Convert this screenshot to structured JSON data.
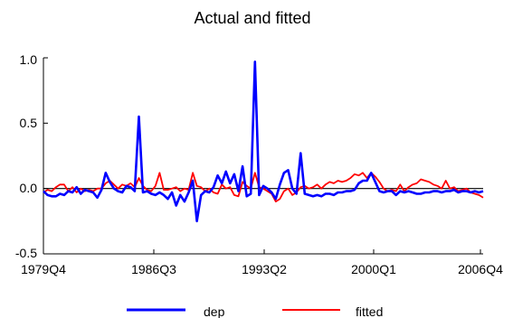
{
  "chart_data": {
    "type": "line",
    "title": "Actual and fitted",
    "xlabel": "",
    "ylabel": "",
    "x_ticks": [
      "1979Q4",
      "1986Q3",
      "1993Q2",
      "2000Q1",
      "2006Q4"
    ],
    "y_ticks": [
      "-0.5",
      "0.0",
      "0.5",
      "1.0"
    ],
    "ylim": [
      -0.5,
      1.0
    ],
    "grid": false,
    "zero_line": true,
    "legend_position": "bottom",
    "series": [
      {
        "name": "dep",
        "color": "#0000ff",
        "values": [
          -0.02,
          -0.05,
          -0.06,
          -0.06,
          -0.04,
          -0.05,
          -0.02,
          -0.03,
          0.01,
          -0.04,
          -0.01,
          -0.02,
          -0.03,
          -0.07,
          -0.01,
          0.12,
          0.05,
          0.0,
          -0.02,
          -0.03,
          0.02,
          0.01,
          -0.02,
          0.55,
          -0.03,
          -0.02,
          -0.04,
          -0.05,
          -0.03,
          -0.05,
          -0.08,
          -0.03,
          -0.13,
          -0.05,
          -0.1,
          -0.03,
          0.06,
          -0.25,
          -0.05,
          -0.02,
          -0.03,
          0.01,
          0.1,
          0.04,
          0.13,
          0.04,
          0.11,
          -0.02,
          0.17,
          -0.06,
          -0.04,
          0.97,
          -0.05,
          0.02,
          0.0,
          -0.03,
          -0.08,
          0.03,
          0.12,
          0.14,
          0.0,
          -0.04,
          0.27,
          -0.04,
          -0.05,
          -0.06,
          -0.05,
          -0.06,
          -0.04,
          -0.04,
          -0.05,
          -0.03,
          -0.03,
          -0.02,
          -0.02,
          -0.01,
          0.04,
          0.06,
          0.06,
          0.12,
          0.05,
          -0.02,
          -0.03,
          -0.02,
          -0.02,
          -0.05,
          -0.02,
          -0.03,
          -0.02,
          -0.03,
          -0.04,
          -0.04,
          -0.03,
          -0.03,
          -0.02,
          -0.02,
          -0.03,
          -0.02,
          -0.02,
          -0.01,
          -0.03,
          -0.02,
          -0.02,
          -0.03,
          -0.02,
          -0.03,
          -0.02
        ]
      },
      {
        "name": "fitted",
        "color": "#ff0000",
        "values": [
          -0.03,
          -0.01,
          -0.02,
          0.01,
          0.03,
          0.03,
          -0.02,
          0.01,
          -0.03,
          0.0,
          -0.02,
          -0.01,
          -0.02,
          0.0,
          0.0,
          0.04,
          0.06,
          0.03,
          0.0,
          0.03,
          0.02,
          0.04,
          0.01,
          0.08,
          0.02,
          -0.01,
          -0.02,
          0.02,
          0.12,
          -0.01,
          -0.01,
          0.0,
          0.01,
          -0.02,
          0.0,
          -0.01,
          0.12,
          0.02,
          0.01,
          -0.02,
          0.0,
          -0.03,
          -0.04,
          0.03,
          0.0,
          0.01,
          -0.05,
          -0.06,
          0.05,
          0.02,
          0.0,
          0.12,
          0.01,
          0.0,
          -0.02,
          -0.04,
          -0.1,
          -0.08,
          -0.02,
          0.0,
          -0.05,
          -0.03,
          0.01,
          0.02,
          0.0,
          0.01,
          0.03,
          0.0,
          0.03,
          0.05,
          0.04,
          0.06,
          0.05,
          0.06,
          0.08,
          0.11,
          0.1,
          0.12,
          0.08,
          0.12,
          0.09,
          0.05,
          0.0,
          -0.02,
          -0.01,
          -0.02,
          0.03,
          -0.02,
          0.01,
          0.03,
          0.04,
          0.07,
          0.06,
          0.05,
          0.03,
          0.02,
          0.0,
          0.06,
          0.0,
          0.01,
          -0.02,
          -0.01,
          0.0,
          -0.03,
          -0.04,
          -0.05,
          -0.07
        ]
      }
    ]
  }
}
